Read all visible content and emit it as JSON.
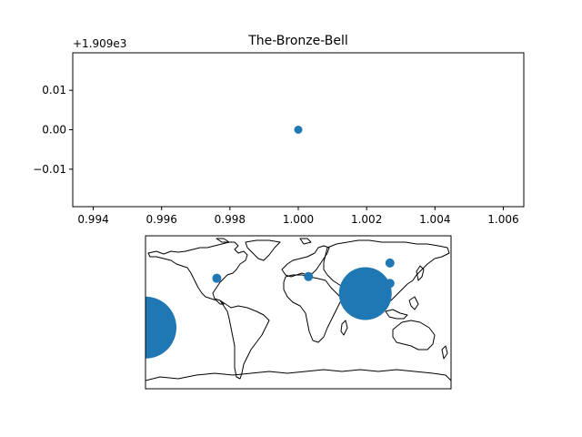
{
  "chart_data": [
    {
      "type": "scatter",
      "title": "The-Bronze-Bell",
      "xlabel": "",
      "ylabel": "",
      "y_offset_label": "+1.909e3",
      "xlim": [
        0.9934,
        1.0066
      ],
      "ylim": [
        -0.0195,
        0.0195
      ],
      "x_ticks": [
        0.994,
        0.996,
        0.998,
        1.0,
        1.002,
        1.004,
        1.006
      ],
      "x_tick_labels": [
        "0.994",
        "0.996",
        "0.998",
        "1.000",
        "1.002",
        "1.004",
        "1.006"
      ],
      "y_ticks": [
        -0.01,
        0.0,
        0.01
      ],
      "y_tick_labels": [
        "−0.01",
        "0.00",
        "0.01"
      ],
      "grid": false,
      "color": "#1f77b4",
      "points": [
        {
          "x": 1.0,
          "y": 0.0
        }
      ]
    },
    {
      "type": "scatter",
      "subtype": "world-map-bubbles",
      "title": "",
      "color": "#1f77b4",
      "lon_range": [
        -180,
        180
      ],
      "lat_range": [
        -90,
        90
      ],
      "points": [
        {
          "lon": -180,
          "lat": -18,
          "size": 34
        },
        {
          "lon": -96,
          "lat": 40,
          "size": 5
        },
        {
          "lon": 12,
          "lat": 42,
          "size": 5
        },
        {
          "lon": 79,
          "lat": 22,
          "size": 29
        },
        {
          "lon": 108,
          "lat": 34,
          "size": 5
        },
        {
          "lon": 108,
          "lat": 58,
          "size": 5
        }
      ]
    }
  ]
}
